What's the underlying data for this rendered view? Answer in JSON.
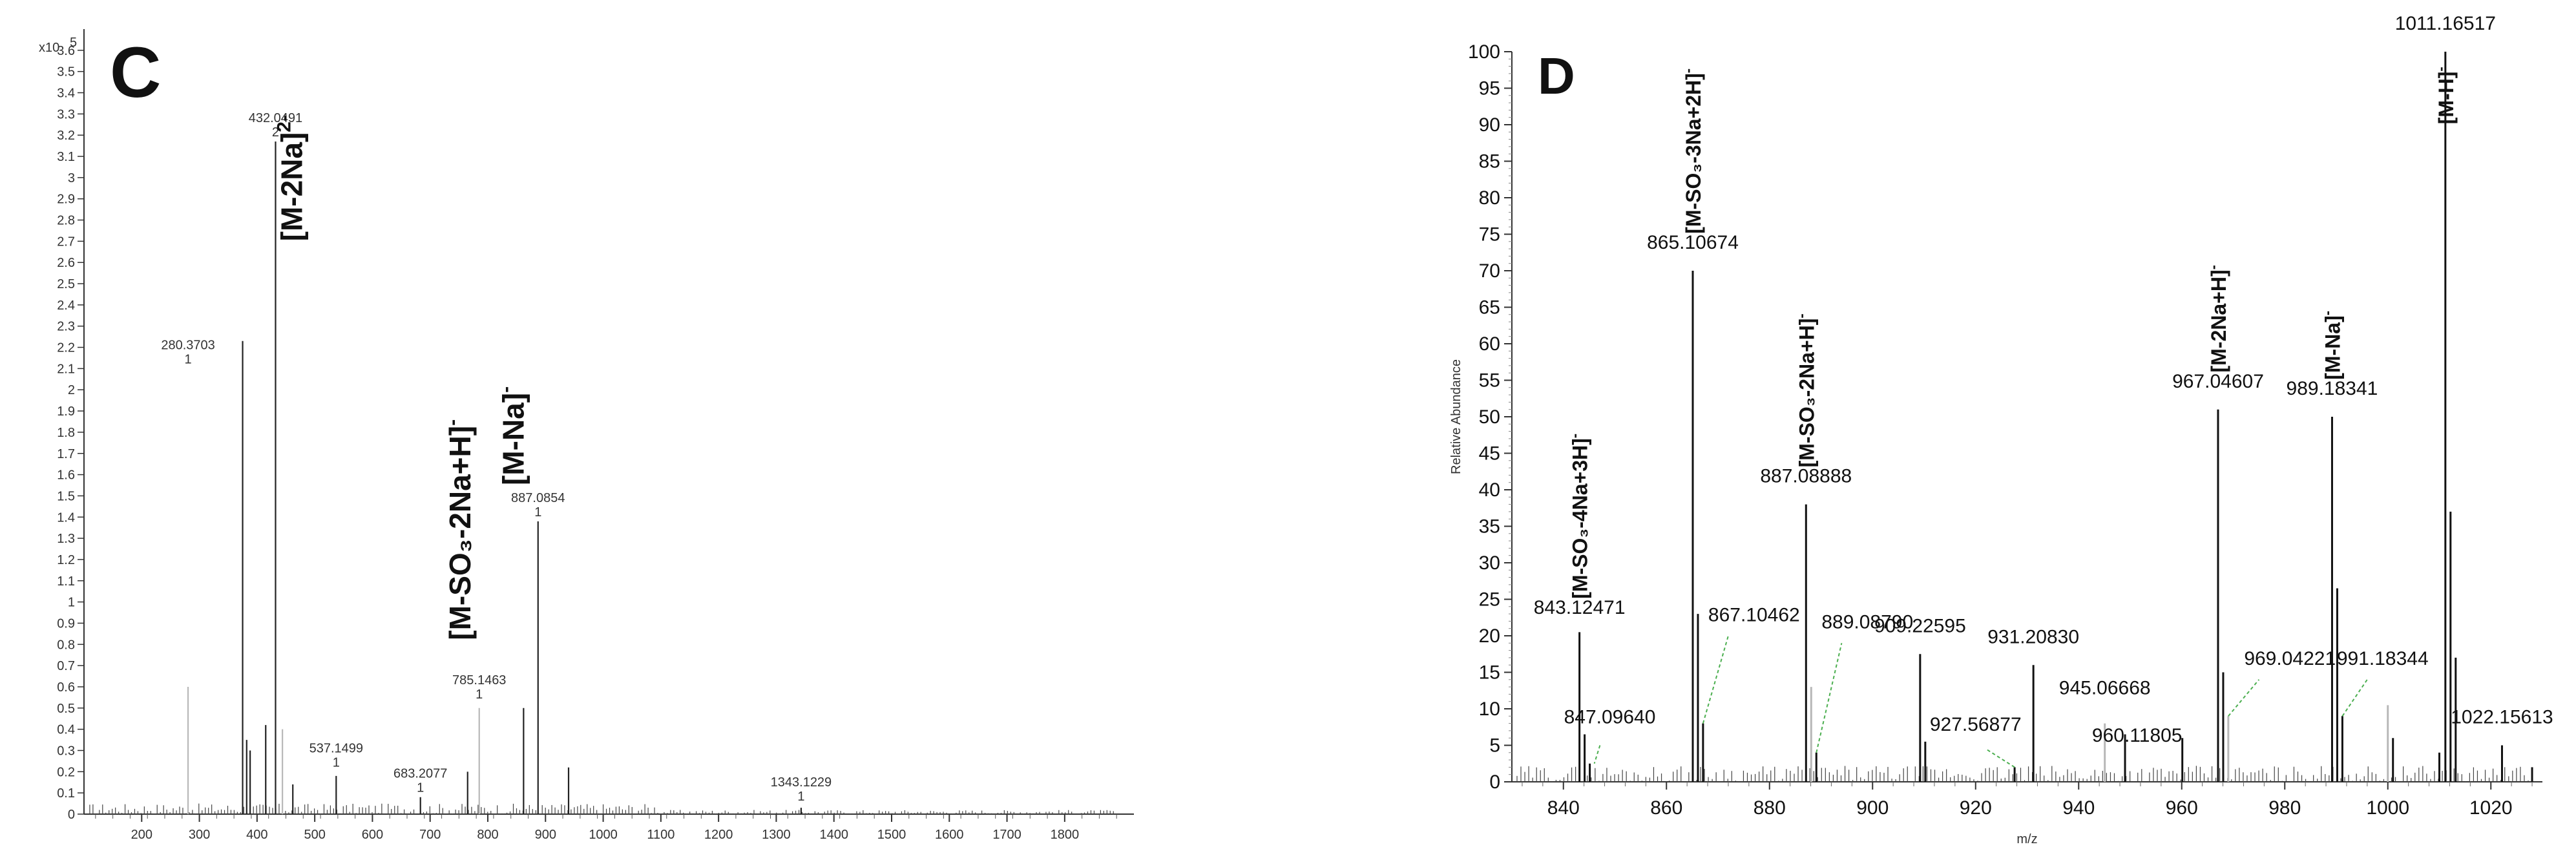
{
  "chart_data": [
    {
      "type": "bar",
      "panel_label": "C",
      "y_multiplier": "x10",
      "y_multiplier_exp": "5",
      "xlim": [
        100,
        1920
      ],
      "ylim": [
        0,
        3.7
      ],
      "xticks": [
        "200",
        "300",
        "400",
        "500",
        "600",
        "700",
        "800",
        "900",
        "1000",
        "1100",
        "1200",
        "1300",
        "1400",
        "1500",
        "1600",
        "1700",
        "1800"
      ],
      "yticks": [
        "0",
        "0.1",
        "0.2",
        "0.3",
        "0.4",
        "0.5",
        "0.6",
        "0.7",
        "0.8",
        "0.9",
        "1",
        "1.1",
        "1.2",
        "1.3",
        "1.4",
        "1.5",
        "1.6",
        "1.7",
        "1.8",
        "1.9",
        "2",
        "2.1",
        "2.2",
        "2.3",
        "2.4",
        "2.5",
        "2.6",
        "2.7",
        "2.8",
        "2.9",
        "3",
        "3.1",
        "3.2",
        "3.3",
        "3.4",
        "3.5",
        "3.6"
      ],
      "peaks": [
        {
          "x": 280.37,
          "y": 0.6,
          "series": "light"
        },
        {
          "x": 375,
          "y": 2.23,
          "series": "dark"
        },
        {
          "x": 382,
          "y": 0.35,
          "series": "dark"
        },
        {
          "x": 388,
          "y": 0.3,
          "series": "dark"
        },
        {
          "x": 415,
          "y": 0.42,
          "series": "dark"
        },
        {
          "x": 432.05,
          "y": 3.17,
          "series": "dark"
        },
        {
          "x": 444,
          "y": 0.4,
          "series": "light"
        },
        {
          "x": 462,
          "y": 0.14,
          "series": "dark"
        },
        {
          "x": 537.15,
          "y": 0.18,
          "series": "dark"
        },
        {
          "x": 683.21,
          "y": 0.08,
          "series": "dark"
        },
        {
          "x": 765,
          "y": 0.2,
          "series": "dark"
        },
        {
          "x": 785.15,
          "y": 0.5,
          "series": "light"
        },
        {
          "x": 862,
          "y": 0.5,
          "series": "dark"
        },
        {
          "x": 887.09,
          "y": 1.38,
          "series": "dark"
        },
        {
          "x": 940,
          "y": 0.22,
          "series": "dark"
        },
        {
          "x": 1343.12,
          "y": 0.03,
          "series": "dark"
        }
      ],
      "peak_labels": [
        {
          "x": 432.05,
          "y": 3.17,
          "text": "432.0491",
          "charge": "2"
        },
        {
          "x": 280.37,
          "y": 2.1,
          "text": "280.3703",
          "charge": "1"
        },
        {
          "x": 537.15,
          "y": 0.2,
          "text": "537.1499",
          "charge": "1"
        },
        {
          "x": 683.21,
          "y": 0.08,
          "text": "683.2077",
          "charge": "1"
        },
        {
          "x": 785.15,
          "y": 0.52,
          "text": "785.1463",
          "charge": "1"
        },
        {
          "x": 887.09,
          "y": 1.38,
          "text": "887.0854",
          "charge": "1"
        },
        {
          "x": 1343.12,
          "y": 0.04,
          "text": "1343.1229",
          "charge": "1"
        }
      ],
      "annotations": [
        {
          "x": 478,
          "y": 2.7,
          "text": "[M-2Na]",
          "sup": "2-"
        },
        {
          "x": 770,
          "y": 0.82,
          "text": "[M-SO₃-2Na+H]",
          "sup": "-"
        },
        {
          "x": 862,
          "y": 1.55,
          "text": "[M-Na]",
          "sup": "-"
        }
      ]
    },
    {
      "type": "bar",
      "panel_label": "D",
      "xlabel": "m/z",
      "ylabel": "Relative Abundance",
      "xlim": [
        830,
        1030
      ],
      "ylim": [
        0,
        100
      ],
      "xticks": [
        "840",
        "860",
        "880",
        "900",
        "920",
        "940",
        "960",
        "980",
        "1000",
        "1020"
      ],
      "yticks": [
        "0",
        "5",
        "10",
        "15",
        "20",
        "25",
        "30",
        "35",
        "40",
        "45",
        "50",
        "55",
        "60",
        "65",
        "70",
        "75",
        "80",
        "85",
        "90",
        "95",
        "100"
      ],
      "peaks": [
        {
          "x": 843.12,
          "y": 20.5,
          "series": "dark"
        },
        {
          "x": 844.12,
          "y": 6.5,
          "series": "dark"
        },
        {
          "x": 845.12,
          "y": 2.5,
          "series": "dark"
        },
        {
          "x": 865.11,
          "y": 70,
          "series": "dark"
        },
        {
          "x": 866.11,
          "y": 23,
          "series": "dark"
        },
        {
          "x": 867.1,
          "y": 8,
          "series": "dark"
        },
        {
          "x": 887.09,
          "y": 38,
          "series": "dark"
        },
        {
          "x": 888.09,
          "y": 13,
          "series": "light"
        },
        {
          "x": 889.09,
          "y": 4,
          "series": "dark"
        },
        {
          "x": 909.23,
          "y": 17.5,
          "series": "dark"
        },
        {
          "x": 910.23,
          "y": 5.5,
          "series": "dark"
        },
        {
          "x": 927.57,
          "y": 2,
          "series": "dark"
        },
        {
          "x": 931.21,
          "y": 16,
          "series": "dark"
        },
        {
          "x": 945.07,
          "y": 8,
          "series": "light"
        },
        {
          "x": 949,
          "y": 6.5,
          "series": "dark"
        },
        {
          "x": 960.12,
          "y": 6,
          "series": "dark"
        },
        {
          "x": 967.05,
          "y": 51,
          "series": "dark"
        },
        {
          "x": 968.05,
          "y": 15,
          "series": "dark"
        },
        {
          "x": 969.04,
          "y": 9,
          "series": "light"
        },
        {
          "x": 989.18,
          "y": 50,
          "series": "dark"
        },
        {
          "x": 990.18,
          "y": 26.5,
          "series": "dark"
        },
        {
          "x": 991.18,
          "y": 9,
          "series": "dark"
        },
        {
          "x": 1000,
          "y": 10.5,
          "series": "light"
        },
        {
          "x": 1001,
          "y": 6,
          "series": "dark"
        },
        {
          "x": 1010,
          "y": 4,
          "series": "dark"
        },
        {
          "x": 1011.17,
          "y": 100,
          "series": "dark"
        },
        {
          "x": 1012.17,
          "y": 37,
          "series": "dark"
        },
        {
          "x": 1013.17,
          "y": 17,
          "series": "dark"
        },
        {
          "x": 1022.16,
          "y": 5,
          "series": "dark"
        },
        {
          "x": 1028,
          "y": 2,
          "series": "dark"
        }
      ],
      "peak_labels": [
        {
          "x": 843.12,
          "y": 20.5,
          "text": "843.12471"
        },
        {
          "x": 865.11,
          "y": 70,
          "text": "865.10674"
        },
        {
          "x": 887.09,
          "y": 38,
          "text": "887.08888"
        },
        {
          "x": 909.23,
          "y": 17.5,
          "text": "909.22595"
        },
        {
          "x": 931.21,
          "y": 16,
          "text": "931.20830"
        },
        {
          "x": 967.05,
          "y": 51,
          "text": "967.04607"
        },
        {
          "x": 989.18,
          "y": 50,
          "text": "989.18341"
        },
        {
          "x": 1011.17,
          "y": 100,
          "text": "1011.16517"
        },
        {
          "x": 945.07,
          "y": 8,
          "text": "945.06668"
        },
        {
          "x": 960.12,
          "y": 6,
          "text": "960.11805"
        },
        {
          "x": 1022.16,
          "y": 5,
          "text": "1022.15613"
        },
        {
          "x": 847.1,
          "y": 5,
          "text": "847.09640"
        },
        {
          "x": 867.1,
          "y": 8,
          "text": "867.10462"
        },
        {
          "x": 889.09,
          "y": 4,
          "text": "889.08790"
        },
        {
          "x": 927.57,
          "y": 2,
          "text": "927.56877"
        },
        {
          "x": 969.04,
          "y": 9,
          "text": "969.04221"
        },
        {
          "x": 991.18,
          "y": 9,
          "text": "991.18344"
        }
      ],
      "annotations": [
        {
          "x": 843.12,
          "y": 24,
          "text": "[M-SO₃-4Na+3H]",
          "sup": "-"
        },
        {
          "x": 865.11,
          "y": 74,
          "text": "[M-SO₃-3Na+2H]",
          "sup": "-"
        },
        {
          "x": 887.09,
          "y": 42,
          "text": "[M-SO₃-2Na+H]",
          "sup": "-"
        },
        {
          "x": 967.05,
          "y": 55,
          "text": "[M-2Na+H]",
          "sup": "-"
        },
        {
          "x": 989.18,
          "y": 54,
          "text": "[M-Na]",
          "sup": "-"
        },
        {
          "x": 1011.17,
          "y": 90,
          "text": "[M-H]",
          "sup": "-"
        }
      ]
    }
  ]
}
